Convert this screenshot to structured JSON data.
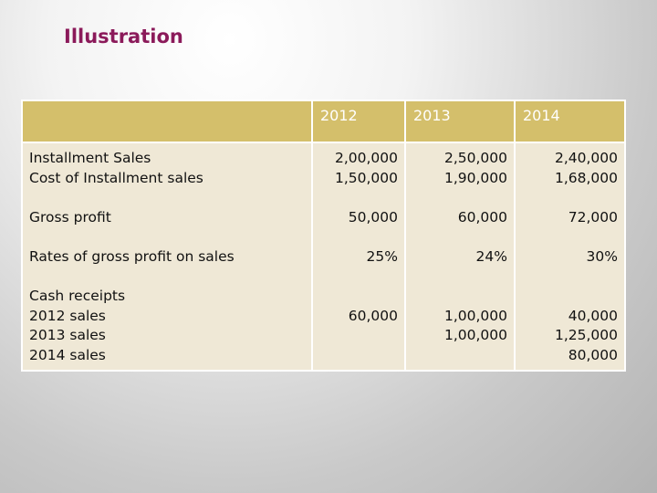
{
  "title": "Illustration",
  "table": {
    "years": [
      "2012",
      "2013",
      "2014"
    ],
    "labels": {
      "installment_sales": "Installment  Sales",
      "cost_of_installment_sales": "Cost of Installment sales",
      "gross_profit": "Gross profit",
      "rates_of_gross_profit": "Rates of gross profit on sales",
      "cash_receipts": "Cash receipts",
      "sales_2012": "2012 sales",
      "sales_2013": "2013 sales",
      "sales_2014": "2014 sales"
    },
    "col2012": {
      "installment_sales": "2,00,000",
      "cost": "1,50,000",
      "gross_profit": "50,000",
      "rate": "25%",
      "receipt_2012": "60,000"
    },
    "col2013": {
      "installment_sales": "2,50,000",
      "cost": "1,90,000",
      "gross_profit": "60,000",
      "rate": "24%",
      "receipt_2012": "1,00,000",
      "receipt_2013": "1,00,000"
    },
    "col2014": {
      "installment_sales": "2,40,000",
      "cost": "1,68,000",
      "gross_profit": "72,000",
      "rate": "30%",
      "receipt_2012": "40,000",
      "receipt_2013": "1,25,000",
      "receipt_2014": "80,000"
    }
  }
}
